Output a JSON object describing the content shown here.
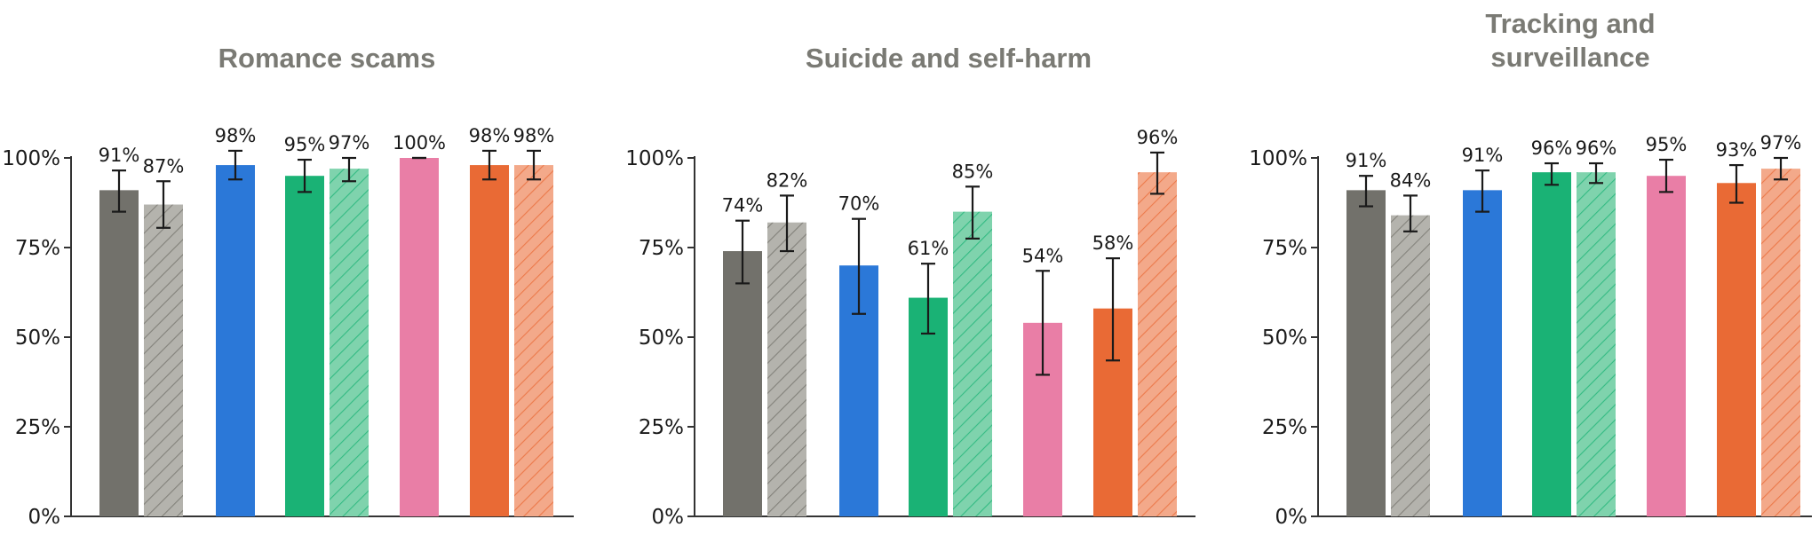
{
  "colors": {
    "gray": "#72716b",
    "blue": "#2b78d8",
    "green": "#1ab275",
    "pink": "#e97ea6",
    "orange": "#e96a35",
    "gray_hatched": "#b4b3ad",
    "green_hatched": "#7fd3ad",
    "orange_hatched": "#f3a98a",
    "title": "#7a7a74",
    "axis": "#333333"
  },
  "chart_data": [
    {
      "type": "bar",
      "title": [
        "Romance scams"
      ],
      "ylim": [
        0,
        100
      ],
      "yticks": [
        "0%",
        "25%",
        "50%",
        "75%",
        "100%"
      ],
      "groups": [
        {
          "bars": [
            {
              "value": 91,
              "label": "91%",
              "err": [
                85,
                96.5
              ],
              "color": "gray",
              "hatched": false
            },
            {
              "value": 87,
              "label": "87%",
              "err": [
                80.5,
                93.5
              ],
              "color": "gray",
              "hatched": true
            }
          ]
        },
        {
          "bars": [
            {
              "value": 98,
              "label": "98%",
              "err": [
                94,
                102
              ],
              "color": "blue",
              "hatched": false
            }
          ]
        },
        {
          "bars": [
            {
              "value": 95,
              "label": "95%",
              "err": [
                90.5,
                99.5
              ],
              "color": "green",
              "hatched": false
            },
            {
              "value": 97,
              "label": "97%",
              "err": [
                93.5,
                100
              ],
              "color": "green",
              "hatched": true
            }
          ]
        },
        {
          "bars": [
            {
              "value": 100,
              "label": "100%",
              "err": [
                100,
                100
              ],
              "color": "pink",
              "hatched": false
            }
          ]
        },
        {
          "bars": [
            {
              "value": 98,
              "label": "98%",
              "err": [
                94,
                102
              ],
              "color": "orange",
              "hatched": false
            },
            {
              "value": 98,
              "label": "98%",
              "err": [
                94,
                102
              ],
              "color": "orange",
              "hatched": true
            }
          ]
        }
      ]
    },
    {
      "type": "bar",
      "title": [
        "Suicide and self-harm"
      ],
      "ylim": [
        0,
        100
      ],
      "yticks": [
        "0%",
        "25%",
        "50%",
        "75%",
        "100%"
      ],
      "groups": [
        {
          "bars": [
            {
              "value": 74,
              "label": "74%",
              "err": [
                65,
                82.5
              ],
              "color": "gray",
              "hatched": false
            },
            {
              "value": 82,
              "label": "82%",
              "err": [
                74,
                89.5
              ],
              "color": "gray",
              "hatched": true
            }
          ]
        },
        {
          "bars": [
            {
              "value": 70,
              "label": "70%",
              "err": [
                56.5,
                83
              ],
              "color": "blue",
              "hatched": false
            }
          ]
        },
        {
          "bars": [
            {
              "value": 61,
              "label": "61%",
              "err": [
                51,
                70.5
              ],
              "color": "green",
              "hatched": false
            },
            {
              "value": 85,
              "label": "85%",
              "err": [
                77.5,
                92
              ],
              "color": "green",
              "hatched": true
            }
          ]
        },
        {
          "bars": [
            {
              "value": 54,
              "label": "54%",
              "err": [
                39.5,
                68.5
              ],
              "color": "pink",
              "hatched": false
            }
          ]
        },
        {
          "bars": [
            {
              "value": 58,
              "label": "58%",
              "err": [
                43.5,
                72
              ],
              "color": "orange",
              "hatched": false
            },
            {
              "value": 96,
              "label": "96%",
              "err": [
                90,
                101.5
              ],
              "color": "orange",
              "hatched": true
            }
          ]
        }
      ]
    },
    {
      "type": "bar",
      "title": [
        "Tracking and",
        "surveillance"
      ],
      "ylim": [
        0,
        100
      ],
      "yticks": [
        "0%",
        "25%",
        "50%",
        "75%",
        "100%"
      ],
      "groups": [
        {
          "bars": [
            {
              "value": 91,
              "label": "91%",
              "err": [
                86.5,
                95
              ],
              "color": "gray",
              "hatched": false
            },
            {
              "value": 84,
              "label": "84%",
              "err": [
                79.5,
                89.5
              ],
              "color": "gray",
              "hatched": true
            }
          ]
        },
        {
          "bars": [
            {
              "value": 91,
              "label": "91%",
              "err": [
                85,
                96.5
              ],
              "color": "blue",
              "hatched": false
            }
          ]
        },
        {
          "bars": [
            {
              "value": 96,
              "label": "96%",
              "err": [
                92.5,
                98.5
              ],
              "color": "green",
              "hatched": false
            },
            {
              "value": 96,
              "label": "96%",
              "err": [
                93,
                98.5
              ],
              "color": "green",
              "hatched": true
            }
          ]
        },
        {
          "bars": [
            {
              "value": 95,
              "label": "95%",
              "err": [
                90.5,
                99.5
              ],
              "color": "pink",
              "hatched": false
            }
          ]
        },
        {
          "bars": [
            {
              "value": 93,
              "label": "93%",
              "err": [
                87.5,
                98
              ],
              "color": "orange",
              "hatched": false
            },
            {
              "value": 97,
              "label": "97%",
              "err": [
                94,
                100
              ],
              "color": "orange",
              "hatched": true
            }
          ]
        }
      ]
    }
  ]
}
